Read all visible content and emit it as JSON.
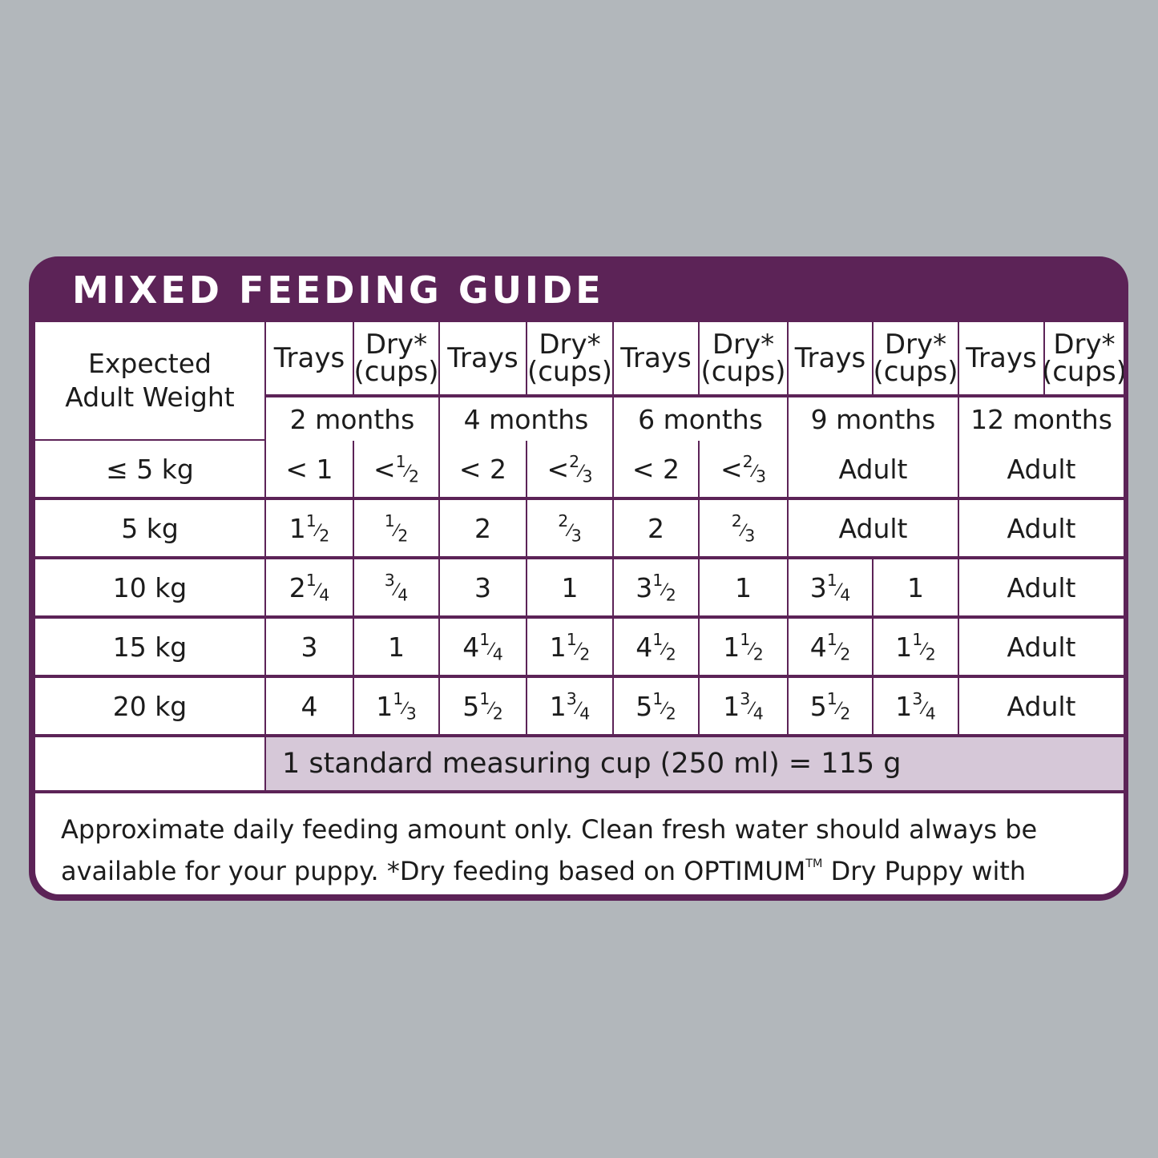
{
  "title": "MIXED FEEDING GUIDE",
  "weight_header": [
    "Expected",
    "Adult Weight"
  ],
  "sub_headers": {
    "trays": "Trays",
    "dry": "Dry*",
    "dry_unit": "(cups)"
  },
  "periods": [
    "2 months",
    "4 months",
    "6 months",
    "9 months",
    "12 months"
  ],
  "rows": [
    {
      "weight": "≤ 5 kg",
      "cells": [
        "< 1",
        "< 1/2",
        "< 2",
        "< 2/3",
        "< 2",
        "< 2/3",
        "Adult",
        "Adult"
      ]
    },
    {
      "weight": "5 kg",
      "cells": [
        "1 1/2",
        "1/2",
        "2",
        "2/3",
        "2",
        "2/3",
        "Adult",
        "Adult"
      ]
    },
    {
      "weight": "10 kg",
      "cells": [
        "2 1/4",
        "3/4",
        "3",
        "1",
        "3 1/2",
        "1",
        "3 1/4",
        "1",
        "Adult"
      ]
    },
    {
      "weight": "15 kg",
      "cells": [
        "3",
        "1",
        "4 1/4",
        "1 1/2",
        "4 1/2",
        "1 1/2",
        "4 1/2",
        "1 1/2",
        "Adult"
      ]
    },
    {
      "weight": "20 kg",
      "cells": [
        "4",
        "1 1/3",
        "5 1/2",
        "1 3/4",
        "5 1/2",
        "1 3/4",
        "5 1/2",
        "1 3/4",
        "Adult"
      ]
    }
  ],
  "cup_note": "1 standard measuring cup (250 ml) = 115 g",
  "disclaimer": {
    "before_tm": "Approximate daily feeding amount only. Clean fresh water should always be available for your puppy.  *Dry feeding based on OPTIMUM",
    "tm": "TM",
    "after_tm": " Dry Puppy with Chicken."
  },
  "colors": {
    "background": "#b2b7bb",
    "brand_purple": "#5c2357",
    "note_fill": "#d6c8d8"
  }
}
